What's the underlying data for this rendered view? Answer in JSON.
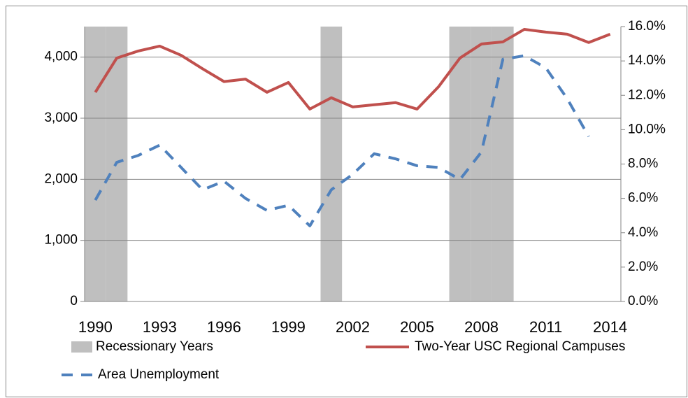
{
  "chart_data": {
    "type": "combo",
    "categories": [
      "1990",
      null,
      null,
      "1993",
      null,
      null,
      "1996",
      null,
      null,
      "1999",
      null,
      null,
      "2002",
      null,
      null,
      "2005",
      null,
      null,
      "2008",
      null,
      null,
      "2011",
      null,
      null,
      "2014"
    ],
    "series": [
      {
        "name": "Recessionary Years",
        "type": "bar",
        "color": "#bfbfbf",
        "values": [
          4500,
          4500,
          null,
          null,
          null,
          null,
          null,
          null,
          null,
          null,
          null,
          4500,
          null,
          null,
          null,
          null,
          null,
          4500,
          4500,
          4500,
          null,
          null,
          null,
          null,
          null
        ]
      },
      {
        "name": "Two-Year USC Regional Campuses",
        "type": "line",
        "color": "#c0504d",
        "values": [
          3425,
          3985,
          4100,
          4180,
          4030,
          3810,
          3600,
          3640,
          3425,
          3585,
          3150,
          3335,
          3185,
          3220,
          3255,
          3150,
          3515,
          3985,
          4215,
          4250,
          4455,
          4410,
          4375,
          4240,
          4375
        ]
      },
      {
        "name": "Area Unemployment",
        "type": "line",
        "dashed": true,
        "axis": "y2",
        "color": "#4f81bd",
        "values": [
          5.9,
          8.1,
          8.5,
          9.1,
          7.8,
          6.5,
          7.0,
          6.0,
          5.3,
          5.6,
          4.4,
          6.5,
          7.4,
          8.6,
          8.3,
          7.9,
          7.8,
          7.1,
          8.7,
          14.1,
          14.3,
          13.6,
          11.8,
          9.6,
          null
        ]
      }
    ],
    "ylim": [
      0,
      4500
    ],
    "yticks": [
      0,
      {
        "value": 1000,
        "label": "1,000"
      },
      {
        "value": 2000,
        "label": "2,000"
      },
      {
        "value": 3000,
        "label": "3,000"
      },
      {
        "value": 4000,
        "label": "4,000"
      }
    ],
    "y2lim": [
      0,
      16
    ],
    "y2ticks": [
      {
        "value": 0,
        "label": "0.0%"
      },
      {
        "value": 2,
        "label": "2.0%"
      },
      {
        "value": 4,
        "label": "4.0%"
      },
      {
        "value": 6,
        "label": "6.0%"
      },
      {
        "value": 8,
        "label": "8.0%"
      },
      {
        "value": 10,
        "label": "10.0%"
      },
      {
        "value": 12,
        "label": "12.0%"
      },
      {
        "value": 14,
        "label": "14.0%"
      },
      {
        "value": 16,
        "label": "16.0%"
      }
    ],
    "grid": true
  }
}
